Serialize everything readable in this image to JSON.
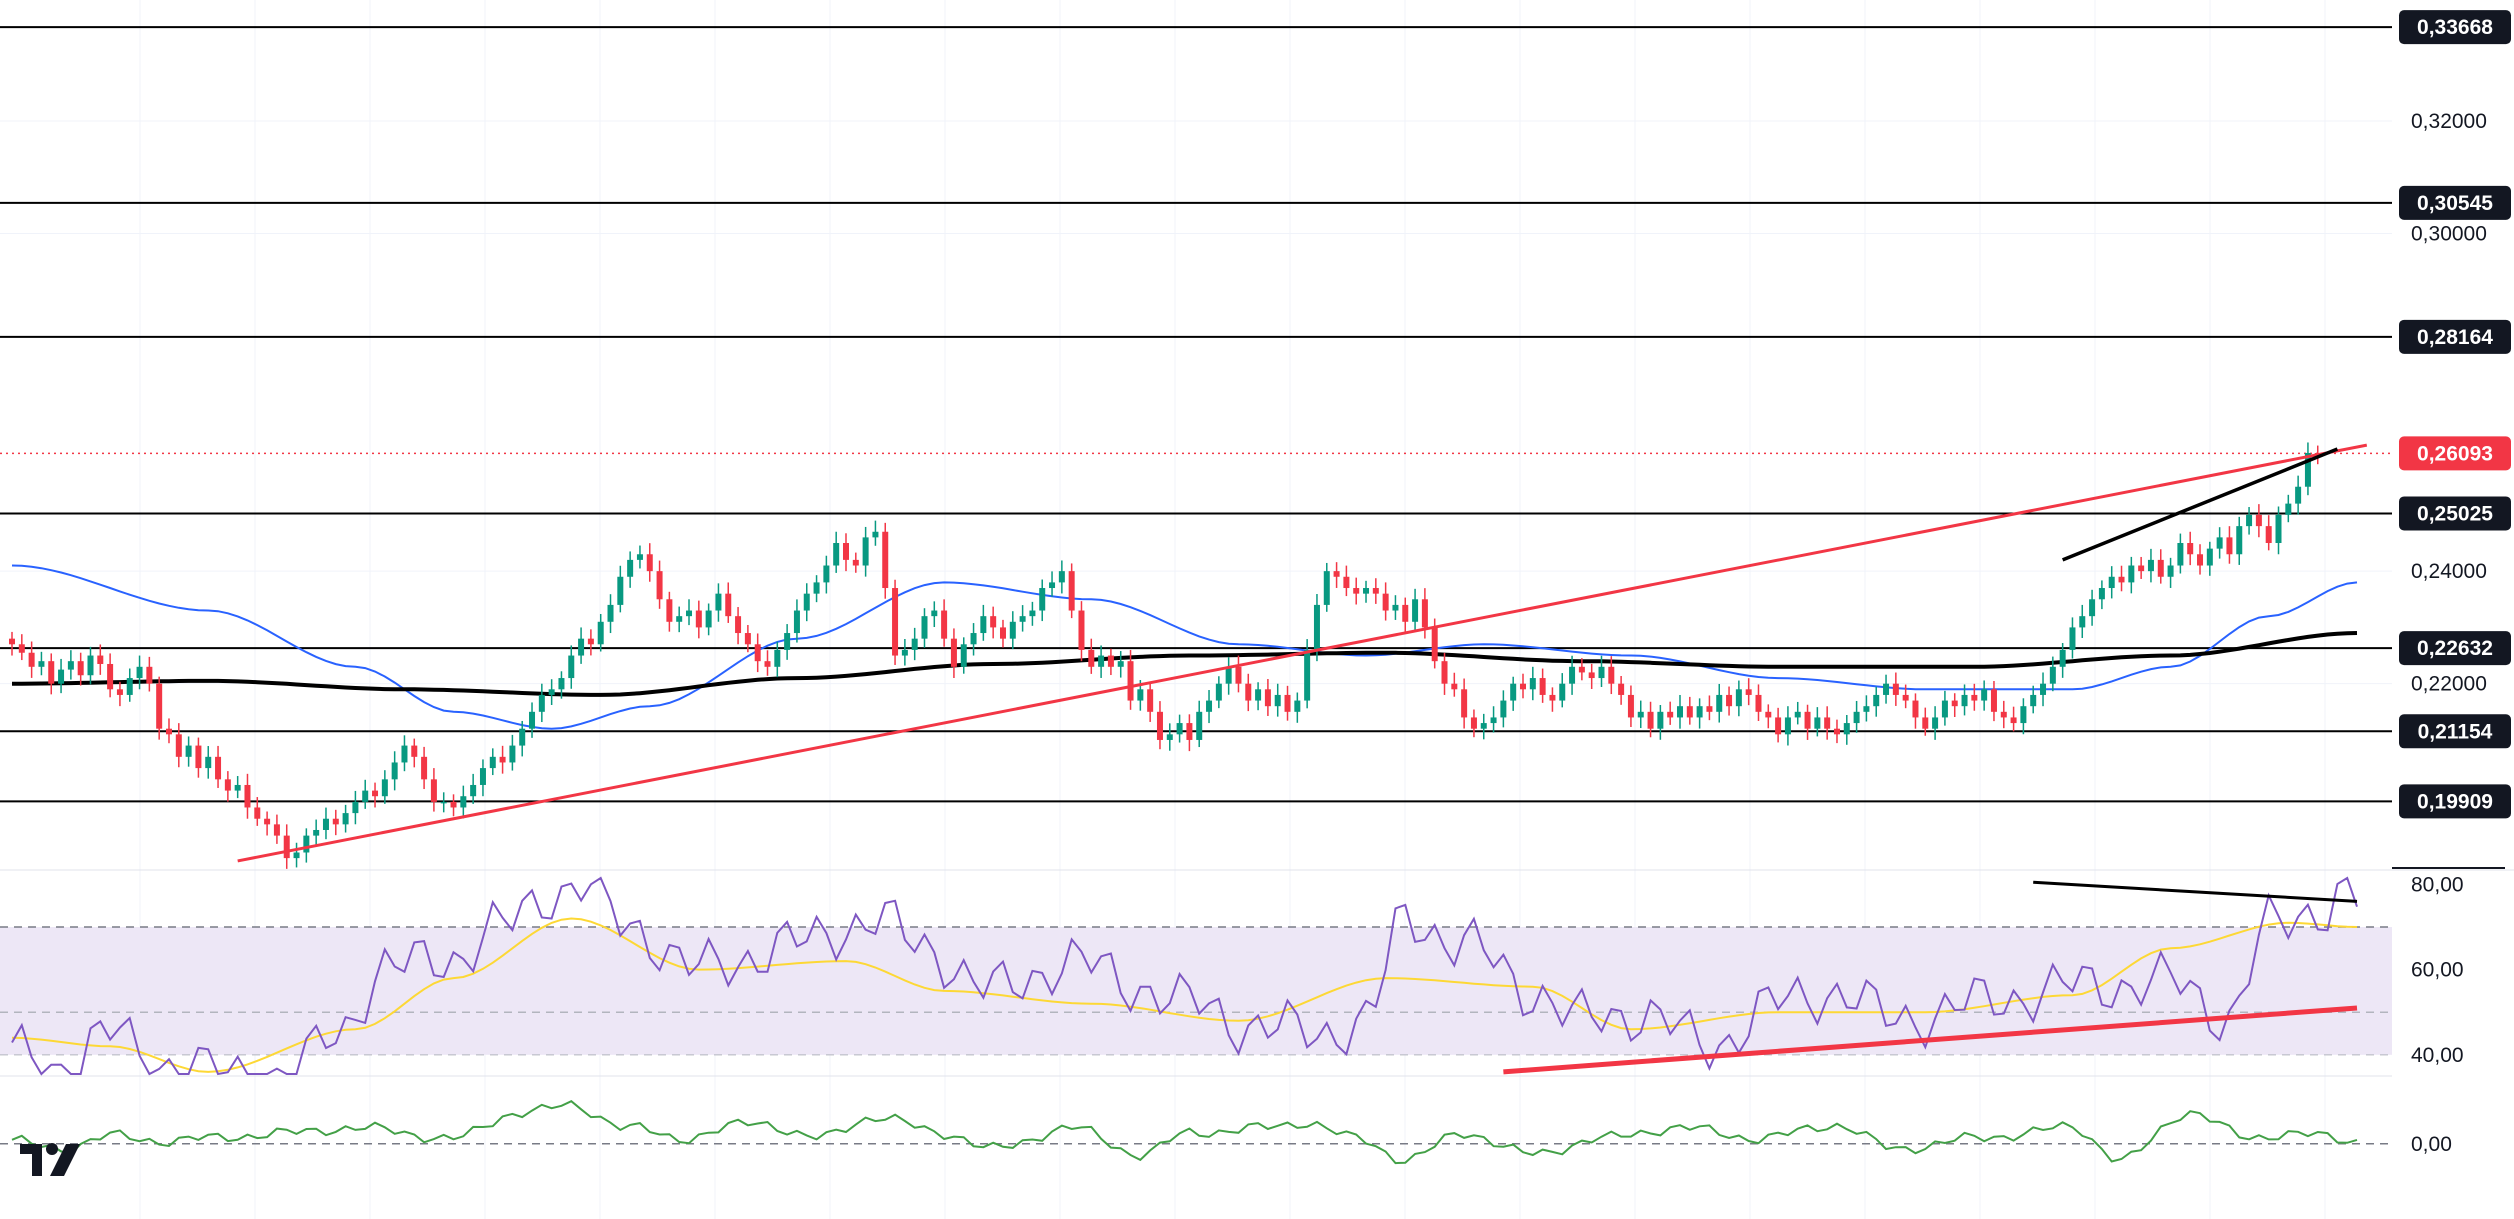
{
  "chart_data": {
    "type": "candlestick",
    "interval_note": "",
    "colors": {
      "up": "#089981",
      "down": "#f23645",
      "ma_fast": "#2962ff",
      "ma_slow": "#000000",
      "trendline": "#f23645",
      "level": "#000000",
      "current_price": "#f23645",
      "rsi": "#7e57c2",
      "rsi_ma": "#fdd835",
      "rsi_band": "#ede7f6",
      "momentum": "#43a047"
    },
    "price_axis": {
      "range": [
        0.186,
        0.3415
      ],
      "ticks": [
        "0,32000",
        "0,30000",
        "0,24000",
        "0,22000"
      ],
      "tick_values": [
        0.32,
        0.3,
        0.24,
        0.22
      ]
    },
    "levels": [
      {
        "value": 0.33668,
        "label": "0,33668"
      },
      {
        "value": 0.30545,
        "label": "0,30545"
      },
      {
        "value": 0.28164,
        "label": "0,28164"
      },
      {
        "value": 0.25025,
        "label": "0,25025"
      },
      {
        "value": 0.22632,
        "label": "0,22632"
      },
      {
        "value": 0.21154,
        "label": "0,21154"
      },
      {
        "value": 0.19909,
        "label": "0,19909"
      }
    ],
    "current_price": {
      "value": 0.26093,
      "label": "0,26093"
    },
    "candle_count": 240,
    "closes": [
      0.227,
      0.2255,
      0.223,
      0.224,
      0.22,
      0.2225,
      0.224,
      0.2215,
      0.225,
      0.2235,
      0.219,
      0.218,
      0.221,
      0.223,
      0.22,
      0.212,
      0.211,
      0.207,
      0.209,
      0.205,
      0.207,
      0.203,
      0.201,
      0.202,
      0.198,
      0.196,
      0.195,
      0.193,
      0.189,
      0.19,
      0.193,
      0.194,
      0.196,
      0.195,
      0.197,
      0.199,
      0.201,
      0.2,
      0.203,
      0.206,
      0.209,
      0.207,
      0.203,
      0.199,
      0.199,
      0.198,
      0.2,
      0.202,
      0.205,
      0.207,
      0.206,
      0.209,
      0.212,
      0.215,
      0.218,
      0.219,
      0.221,
      0.225,
      0.228,
      0.227,
      0.231,
      0.234,
      0.239,
      0.242,
      0.243,
      0.24,
      0.235,
      0.231,
      0.232,
      0.233,
      0.23,
      0.233,
      0.236,
      0.232,
      0.229,
      0.227,
      0.224,
      0.223,
      0.226,
      0.229,
      0.233,
      0.236,
      0.238,
      0.241,
      0.245,
      0.242,
      0.241,
      0.246,
      0.247,
      0.237,
      0.225,
      0.226,
      0.228,
      0.232,
      0.233,
      0.228,
      0.223,
      0.227,
      0.229,
      0.232,
      0.23,
      0.228,
      0.231,
      0.232,
      0.233,
      0.237,
      0.238,
      0.24,
      0.233,
      0.226,
      0.223,
      0.225,
      0.223,
      0.224,
      0.217,
      0.219,
      0.215,
      0.21,
      0.211,
      0.213,
      0.21,
      0.215,
      0.217,
      0.22,
      0.223,
      0.22,
      0.217,
      0.219,
      0.216,
      0.218,
      0.215,
      0.217,
      0.226,
      0.234,
      0.24,
      0.239,
      0.237,
      0.236,
      0.237,
      0.236,
      0.233,
      0.234,
      0.231,
      0.235,
      0.23,
      0.224,
      0.22,
      0.219,
      0.214,
      0.212,
      0.213,
      0.214,
      0.217,
      0.22,
      0.219,
      0.221,
      0.218,
      0.217,
      0.22,
      0.223,
      0.222,
      0.221,
      0.223,
      0.22,
      0.218,
      0.214,
      0.215,
      0.212,
      0.215,
      0.214,
      0.216,
      0.214,
      0.216,
      0.215,
      0.218,
      0.216,
      0.219,
      0.218,
      0.215,
      0.214,
      0.211,
      0.214,
      0.215,
      0.212,
      0.214,
      0.212,
      0.211,
      0.213,
      0.215,
      0.216,
      0.218,
      0.22,
      0.218,
      0.217,
      0.214,
      0.212,
      0.214,
      0.217,
      0.216,
      0.218,
      0.217,
      0.219,
      0.215,
      0.214,
      0.213,
      0.216,
      0.218,
      0.22,
      0.223,
      0.226,
      0.23,
      0.232,
      0.235,
      0.237,
      0.239,
      0.238,
      0.241,
      0.24,
      0.242,
      0.239,
      0.241,
      0.245,
      0.243,
      0.241,
      0.244,
      0.246,
      0.243,
      0.248,
      0.25,
      0.248,
      0.245,
      0.25,
      0.252,
      0.255,
      0.261,
      0.2609
    ],
    "ma_fast_anchors": [
      [
        0,
        0.241
      ],
      [
        20,
        0.233
      ],
      [
        35,
        0.223
      ],
      [
        45,
        0.215
      ],
      [
        55,
        0.212
      ],
      [
        65,
        0.216
      ],
      [
        80,
        0.228
      ],
      [
        95,
        0.238
      ],
      [
        110,
        0.235
      ],
      [
        125,
        0.227
      ],
      [
        138,
        0.225
      ],
      [
        150,
        0.227
      ],
      [
        165,
        0.225
      ],
      [
        180,
        0.221
      ],
      [
        195,
        0.219
      ],
      [
        210,
        0.219
      ],
      [
        220,
        0.223
      ],
      [
        230,
        0.232
      ],
      [
        239,
        0.238
      ]
    ],
    "ma_slow_anchors": [
      [
        0,
        0.22
      ],
      [
        20,
        0.2205
      ],
      [
        40,
        0.219
      ],
      [
        60,
        0.218
      ],
      [
        80,
        0.221
      ],
      [
        100,
        0.2235
      ],
      [
        120,
        0.225
      ],
      [
        140,
        0.2255
      ],
      [
        160,
        0.224
      ],
      [
        180,
        0.223
      ],
      [
        200,
        0.223
      ],
      [
        220,
        0.225
      ],
      [
        239,
        0.229
      ]
    ],
    "trendlines": [
      {
        "from": [
          23,
          0.1885
        ],
        "to": [
          240,
          0.2624
        ],
        "color": "#f23645"
      },
      {
        "from": [
          209,
          0.242
        ],
        "to": [
          237,
          0.2617
        ],
        "color": "#000000"
      }
    ],
    "rsi": {
      "ticks": [
        "80,00",
        "60,00",
        "40,00"
      ],
      "tick_values": [
        80,
        60,
        40
      ],
      "range": [
        35.5,
        81.5
      ],
      "band": [
        40,
        70
      ],
      "midline": 50,
      "anchors": [
        [
          0,
          40
        ],
        [
          5,
          37
        ],
        [
          10,
          45
        ],
        [
          15,
          38
        ],
        [
          20,
          36
        ],
        [
          28,
          34
        ],
        [
          33,
          45
        ],
        [
          38,
          60
        ],
        [
          45,
          63
        ],
        [
          50,
          70
        ],
        [
          55,
          78
        ],
        [
          58,
          80
        ],
        [
          63,
          70
        ],
        [
          70,
          60
        ],
        [
          80,
          66
        ],
        [
          88,
          72
        ],
        [
          93,
          65
        ],
        [
          100,
          55
        ],
        [
          108,
          62
        ],
        [
          115,
          56
        ],
        [
          120,
          52
        ],
        [
          126,
          47
        ],
        [
          133,
          45
        ],
        [
          138,
          48
        ],
        [
          142,
          72
        ],
        [
          148,
          66
        ],
        [
          155,
          55
        ],
        [
          160,
          48
        ],
        [
          166,
          50
        ],
        [
          173,
          42
        ],
        [
          180,
          52
        ],
        [
          186,
          55
        ],
        [
          192,
          48
        ],
        [
          200,
          52
        ],
        [
          210,
          56
        ],
        [
          220,
          57
        ],
        [
          226,
          49
        ],
        [
          230,
          70
        ],
        [
          236,
          75
        ],
        [
          238,
          80
        ],
        [
          239,
          76
        ]
      ],
      "ma_anchors": [
        [
          0,
          44
        ],
        [
          10,
          42
        ],
        [
          20,
          36
        ],
        [
          35,
          46
        ],
        [
          45,
          58
        ],
        [
          57,
          72
        ],
        [
          70,
          60
        ],
        [
          85,
          62
        ],
        [
          95,
          55
        ],
        [
          110,
          52
        ],
        [
          125,
          48
        ],
        [
          140,
          58
        ],
        [
          155,
          56
        ],
        [
          165,
          46
        ],
        [
          180,
          50
        ],
        [
          195,
          50
        ],
        [
          210,
          54
        ],
        [
          220,
          65
        ],
        [
          232,
          71
        ],
        [
          239,
          70
        ]
      ],
      "trendlines": [
        {
          "from": [
            152,
            36.0
          ],
          "to": [
            239,
            51.0
          ],
          "color": "#f23645"
        },
        {
          "from": [
            206,
            80.5
          ],
          "to": [
            239,
            76.0
          ],
          "color": "#000000"
        }
      ]
    },
    "momentum": {
      "tick": "0,00",
      "tick_value": 0,
      "range": [
        -0.014,
        0.01
      ],
      "anchors": [
        [
          0,
          0.0005
        ],
        [
          5,
          -0.001
        ],
        [
          10,
          0.0015
        ],
        [
          15,
          0.0005
        ],
        [
          20,
          0.001
        ],
        [
          28,
          0.002
        ],
        [
          35,
          0.003
        ],
        [
          45,
          0.001
        ],
        [
          52,
          0.006
        ],
        [
          57,
          0.007
        ],
        [
          63,
          0.003
        ],
        [
          68,
          0.001
        ],
        [
          76,
          0.004
        ],
        [
          82,
          0.001
        ],
        [
          88,
          0.005
        ],
        [
          95,
          0.002
        ],
        [
          100,
          -0.001
        ],
        [
          108,
          0.003
        ],
        [
          115,
          -0.002
        ],
        [
          120,
          0.002
        ],
        [
          128,
          0.003
        ],
        [
          132,
          0.004
        ],
        [
          137,
          0.001
        ],
        [
          142,
          -0.003
        ],
        [
          148,
          0.002
        ],
        [
          155,
          -0.002
        ],
        [
          162,
          0.001
        ],
        [
          170,
          0.003
        ],
        [
          178,
          0.001
        ],
        [
          186,
          0.0035
        ],
        [
          192,
          -0.001
        ],
        [
          200,
          0.001
        ],
        [
          210,
          0.003
        ],
        [
          215,
          -0.003
        ],
        [
          222,
          0.006
        ],
        [
          228,
          0.001
        ],
        [
          232,
          0.002
        ],
        [
          239,
          0.0005
        ]
      ]
    }
  }
}
